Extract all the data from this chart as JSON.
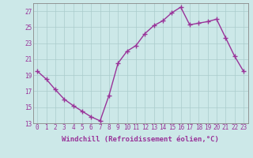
{
  "x": [
    0,
    1,
    2,
    3,
    4,
    5,
    6,
    7,
    8,
    9,
    10,
    11,
    12,
    13,
    14,
    15,
    16,
    17,
    18,
    19,
    20,
    21,
    22,
    23
  ],
  "y": [
    19.5,
    18.5,
    17.2,
    16.0,
    15.2,
    14.5,
    13.8,
    13.3,
    16.5,
    20.5,
    22.0,
    22.7,
    24.2,
    25.2,
    25.8,
    26.8,
    27.5,
    25.3,
    25.5,
    25.7,
    26.0,
    23.7,
    21.4,
    19.5
  ],
  "line_color": "#993399",
  "marker": "+",
  "marker_size": 4,
  "line_width": 1.0,
  "bg_color": "#cce8e8",
  "grid_color": "#aacccc",
  "tick_color": "#993399",
  "label_color": "#993399",
  "xlabel": "Windchill (Refroidissement éolien,°C)",
  "ylim": [
    13,
    28
  ],
  "yticks": [
    13,
    15,
    17,
    19,
    21,
    23,
    25,
    27
  ],
  "xlim": [
    -0.5,
    23.5
  ],
  "xticks": [
    0,
    1,
    2,
    3,
    4,
    5,
    6,
    7,
    8,
    9,
    10,
    11,
    12,
    13,
    14,
    15,
    16,
    17,
    18,
    19,
    20,
    21,
    22,
    23
  ],
  "tick_fontsize": 5.5,
  "label_fontsize": 6.5,
  "spine_color": "#888888"
}
